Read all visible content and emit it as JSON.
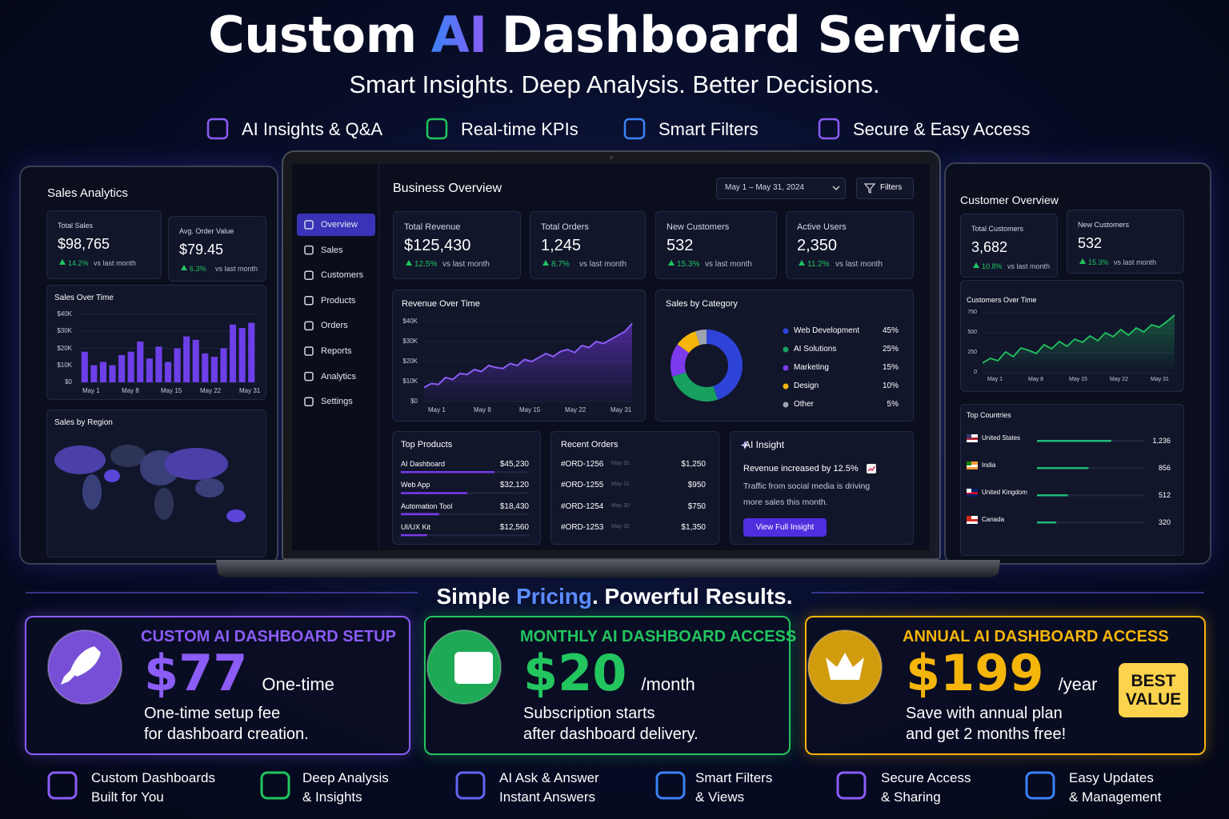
{
  "header": {
    "title": [
      "Custom",
      "AI",
      "Dashboard Service"
    ],
    "subtitle": "Smart Insights. Deep Analysis. Better Decisions.",
    "features": [
      "AI Insights & Q&A",
      "Real-time KPIs",
      "Smart Filters",
      "Secure & Easy Access"
    ]
  },
  "left_panel": {
    "title": "Sales Analytics",
    "kpis": [
      {
        "label": "Total Sales",
        "value": "$98,765",
        "change": "14.2%",
        "note": "vs last month"
      },
      {
        "label": "Avg. Order Value",
        "value": "$79.45",
        "change": "6.3%",
        "note": "vs last month"
      }
    ],
    "sales_chart": {
      "title": "Sales Over Time",
      "ylim": [
        0,
        40000
      ],
      "yticks": [
        {
          "value": 0,
          "label": "$0"
        },
        {
          "value": 10000,
          "label": "$10K"
        },
        {
          "value": 20000,
          "label": "$20K"
        },
        {
          "value": 30000,
          "label": "$30K"
        },
        {
          "value": 40000,
          "label": "$40K"
        }
      ],
      "xlabels": [
        "May 1",
        "May 8",
        "May 15",
        "May 22",
        "May 31"
      ],
      "color": "#6d3fe8",
      "values": [
        18000,
        10000,
        12000,
        10000,
        16000,
        18000,
        24000,
        14000,
        21000,
        12000,
        20000,
        27000,
        25000,
        17000,
        15000,
        20000,
        34000,
        32000,
        35000
      ]
    },
    "region_title": "Sales by Region"
  },
  "main": {
    "sidebar": [
      "Overview",
      "Sales",
      "Customers",
      "Products",
      "Orders",
      "Reports",
      "Analytics",
      "Settings"
    ],
    "title": "Business Overview",
    "date": "May 1 – May 31, 2024",
    "filters": "Filters",
    "kpis": [
      {
        "label": "Total Revenue",
        "value": "$125,430",
        "change": "12.5%",
        "note": "vs last month"
      },
      {
        "label": "Total Orders",
        "value": "1,245",
        "change": "8.7%",
        "note": "vs last month"
      },
      {
        "label": "New Customers",
        "value": "532",
        "change": "15.3%",
        "note": "vs last month"
      },
      {
        "label": "Active Users",
        "value": "2,350",
        "change": "11.2%",
        "note": "vs last month"
      }
    ],
    "revenue_chart": {
      "title": "Revenue Over Time",
      "ylim": [
        0,
        40000
      ],
      "yticks": [
        {
          "value": 0,
          "label": "$0"
        },
        {
          "value": 10000,
          "label": "$10K"
        },
        {
          "value": 20000,
          "label": "$20K"
        },
        {
          "value": 30000,
          "label": "$30K"
        },
        {
          "value": 40000,
          "label": "$40K"
        }
      ],
      "xlabels": [
        "May 1",
        "May 8",
        "May 15",
        "May 22",
        "May 31"
      ],
      "color": "#8b5cf6",
      "values": [
        7000,
        9000,
        8500,
        12000,
        11000,
        14000,
        13500,
        16000,
        15000,
        18000,
        17000,
        16500,
        19000,
        18000,
        21000,
        20000,
        22000,
        24000,
        22500,
        25000,
        26000,
        24500,
        28000,
        27000,
        30000,
        29000,
        31000,
        33000,
        35000,
        39000
      ]
    },
    "category": {
      "title": "Sales by Category",
      "items": [
        {
          "name": "Web Development",
          "value": 45,
          "label": "45%",
          "color": "#2e44d8"
        },
        {
          "name": "AI Solutions",
          "value": 25,
          "label": "25%",
          "color": "#18a05e"
        },
        {
          "name": "Marketing",
          "value": 15,
          "label": "15%",
          "color": "#7c3aed"
        },
        {
          "name": "Design",
          "value": 10,
          "label": "10%",
          "color": "#f5b50b"
        },
        {
          "name": "Other",
          "value": 5,
          "label": "5%",
          "color": "#9ca3af"
        }
      ]
    },
    "top_products": {
      "title": "Top Products",
      "color": "#7c3aed",
      "rows": [
        {
          "name": "AI Dashboard",
          "value": 45230,
          "label": "$45,230"
        },
        {
          "name": "Web App",
          "value": 32120,
          "label": "$32,120"
        },
        {
          "name": "Automation Tool",
          "value": 18430,
          "label": "$18,430"
        },
        {
          "name": "UI/UX Kit",
          "value": 12560,
          "label": "$12,560"
        }
      ]
    },
    "recent_orders": {
      "title": "Recent Orders",
      "rows": [
        [
          "#ORD-1256",
          "May 31",
          "$1,250"
        ],
        [
          "#ORD-1255",
          "May 31",
          "$950"
        ],
        [
          "#ORD-1254",
          "May 30",
          "$750"
        ],
        [
          "#ORD-1253",
          "May 30",
          "$1,350"
        ]
      ]
    },
    "insight": {
      "title": "AI Insight",
      "headline": "Revenue increased by 12.5%",
      "body": [
        "Traffic from social media is driving",
        "more sales this month."
      ],
      "button": "View Full Insight"
    }
  },
  "right_panel": {
    "title": "Customer Overview",
    "kpis": [
      {
        "label": "Total Customers",
        "value": "3,682",
        "change": "10.8%",
        "note": "vs last month"
      },
      {
        "label": "New Customers",
        "value": "532",
        "change": "15.3%",
        "note": "vs last month"
      }
    ],
    "chart": {
      "title": "Customers Over Time",
      "ylim": [
        0,
        900
      ],
      "yticks": [
        0,
        250,
        500,
        750
      ],
      "xlabels": [
        "May 1",
        "May 8",
        "May 15",
        "May 22",
        "May 31"
      ],
      "color": "#22c55e",
      "values": [
        120,
        180,
        150,
        260,
        200,
        310,
        280,
        240,
        350,
        300,
        390,
        330,
        420,
        380,
        460,
        400,
        500,
        450,
        540,
        470,
        560,
        510,
        600,
        570,
        640,
        720
      ]
    },
    "countries": {
      "title": "Top Countries",
      "color": "#1fb87a",
      "rows": [
        {
          "name": "United States",
          "value": 1236,
          "label": "1,236"
        },
        {
          "name": "India",
          "value": 856,
          "label": "856"
        },
        {
          "name": "United Kingdom",
          "value": 512,
          "label": "512"
        },
        {
          "name": "Canada",
          "value": 320,
          "label": "320"
        }
      ]
    }
  },
  "pricing": {
    "title": [
      "Simple",
      "Pricing",
      ". Powerful Results."
    ],
    "plans": [
      {
        "name": "CUSTOM AI DASHBOARD SETUP",
        "price": "$77",
        "unit": "One-time",
        "desc": [
          "One-time setup fee",
          "for dashboard creation."
        ],
        "color": "#8b5cf6"
      },
      {
        "name": "MONTHLY AI DASHBOARD ACCESS",
        "price": "$20",
        "unit": "/month",
        "desc": [
          "Subscription starts",
          "after dashboard delivery."
        ],
        "color": "#22c55e"
      },
      {
        "name": "ANNUAL AI DASHBOARD ACCESS",
        "price": "$199",
        "unit": "/year",
        "desc": [
          "Save with annual plan",
          "and get 2 months free!"
        ],
        "color": "#f5b50b"
      }
    ],
    "badge": "BEST VALUE"
  },
  "footer": [
    [
      "Custom Dashboards",
      "Built for You"
    ],
    [
      "Deep Analysis",
      "& Insights"
    ],
    [
      "AI Ask & Answer",
      "Instant Answers"
    ],
    [
      "Smart Filters",
      "& Views"
    ],
    [
      "Secure Access",
      "& Sharing"
    ],
    [
      "Easy Updates",
      "& Management"
    ]
  ]
}
